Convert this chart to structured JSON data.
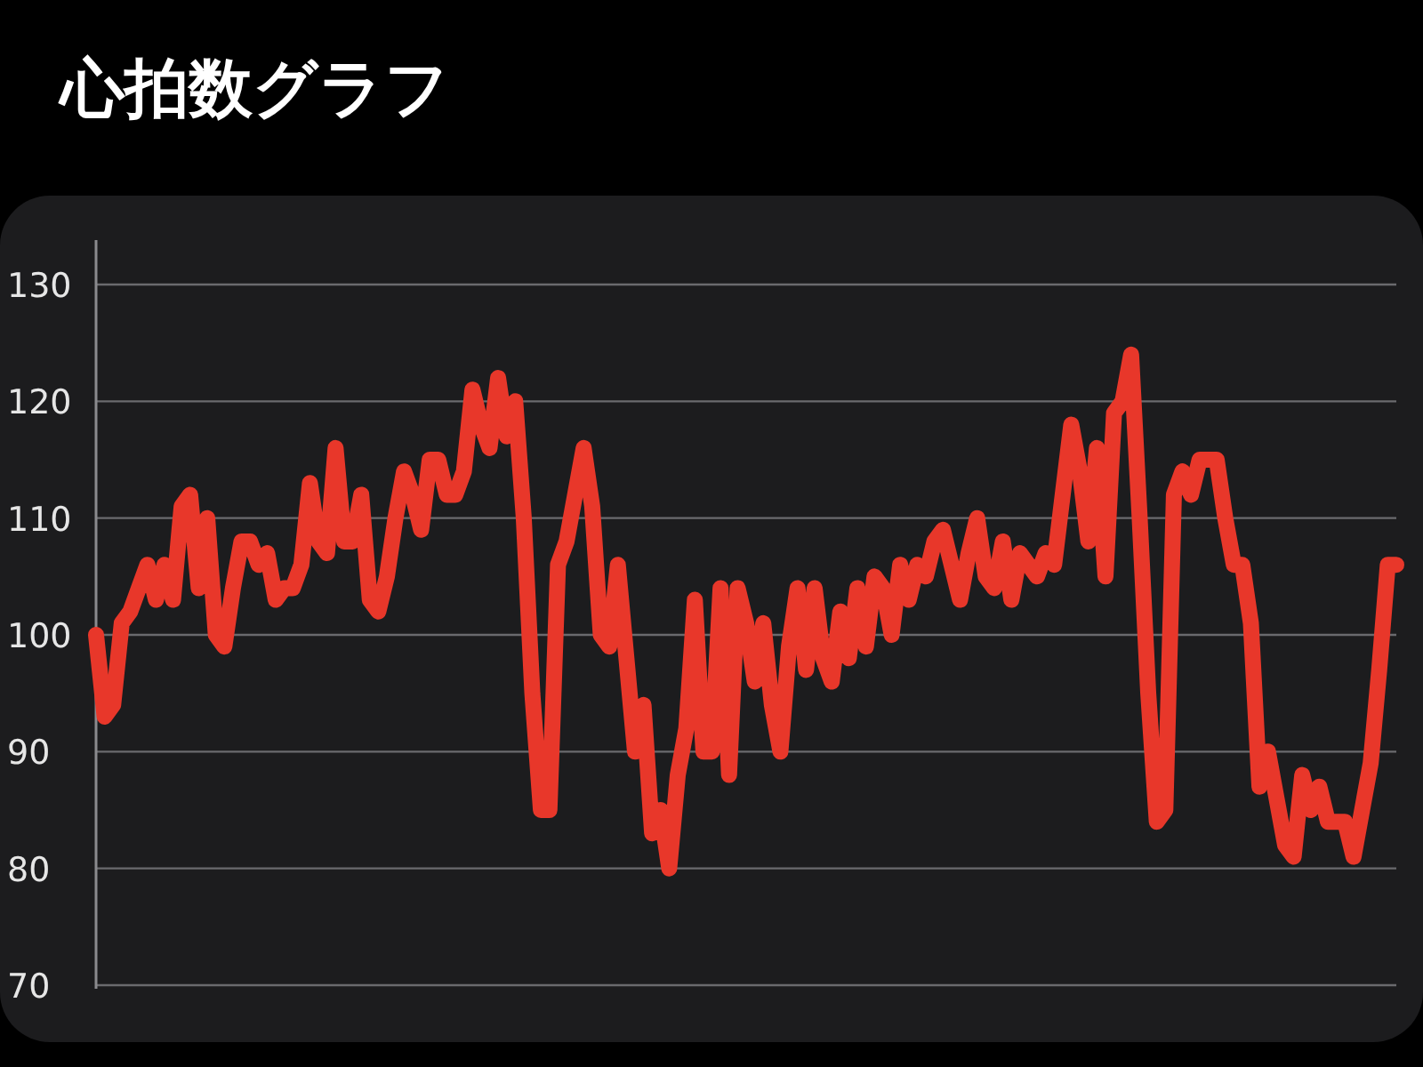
{
  "chart_data": {
    "type": "line",
    "title": "心拍数グラフ",
    "categories": [
      null,
      null,
      null,
      null,
      null,
      null,
      null,
      null,
      null,
      null,
      null,
      null,
      null,
      null,
      null,
      null,
      null,
      null,
      null,
      null,
      null,
      null,
      null,
      null,
      null,
      null,
      null,
      null,
      null,
      null,
      null,
      null,
      null,
      null,
      null,
      null,
      null,
      null,
      null,
      null,
      null,
      null,
      null,
      null,
      null,
      null,
      null,
      null,
      null,
      null,
      null,
      null,
      null,
      null,
      null,
      null,
      null,
      null,
      null,
      null,
      null,
      null,
      null,
      null,
      null,
      null,
      null,
      null,
      null,
      null,
      null,
      null,
      null,
      null,
      null,
      null,
      null,
      null,
      null,
      null,
      null,
      null,
      null,
      null,
      null,
      null,
      null,
      null,
      null,
      null,
      null,
      null,
      null,
      null,
      null,
      null,
      null,
      null,
      null,
      null,
      null,
      null,
      null,
      null,
      null,
      null,
      null,
      null,
      null,
      null,
      null,
      null,
      null,
      null,
      null,
      null,
      null,
      null,
      null,
      null,
      null,
      null,
      null,
      null,
      null,
      null,
      null,
      null,
      null,
      null,
      null,
      null,
      null,
      null,
      null,
      null,
      null,
      null,
      null,
      null,
      null,
      null,
      null,
      null,
      null,
      null,
      null,
      null,
      null,
      null,
      null,
      null,
      null
    ],
    "series": [
      {
        "color": "#e8372a",
        "values": [
          100,
          93,
          94,
          101,
          102,
          104,
          106,
          103,
          106,
          103,
          111,
          112,
          104,
          110,
          100,
          99,
          104,
          108,
          108,
          106,
          107,
          103,
          104,
          104,
          106,
          113,
          108,
          107,
          116,
          108,
          108,
          112,
          103,
          102,
          105,
          110,
          114,
          112,
          109,
          115,
          115,
          112,
          112,
          114,
          121,
          118,
          116,
          122,
          117,
          120,
          110,
          95,
          85,
          85,
          106,
          108,
          112,
          116,
          111,
          100,
          99,
          106,
          98,
          90,
          94,
          83,
          85,
          80,
          88,
          92,
          103,
          90,
          90,
          104,
          88,
          104,
          101,
          96,
          101,
          94,
          90,
          99,
          104,
          97,
          104,
          98,
          96,
          102,
          98,
          104,
          99,
          105,
          104,
          100,
          106,
          103,
          106,
          105,
          108,
          109,
          106,
          103,
          107,
          110,
          105,
          104,
          108,
          103,
          107,
          106,
          105,
          107,
          106,
          112,
          118,
          114,
          108,
          116,
          105,
          119,
          120,
          124,
          110,
          95,
          84,
          85,
          112,
          114,
          112,
          115,
          115,
          115,
          110,
          106,
          106,
          101,
          87,
          90,
          86,
          82,
          81,
          88,
          85,
          87,
          84,
          84,
          84,
          81,
          85,
          89,
          97,
          106,
          106
        ]
      }
    ],
    "ylim": [
      70,
      130
    ],
    "yticks": [
      70,
      80,
      90,
      100,
      110,
      120,
      130
    ],
    "grid": "y",
    "tick_labels": "y",
    "line_style": "solid",
    "marker": "none"
  }
}
